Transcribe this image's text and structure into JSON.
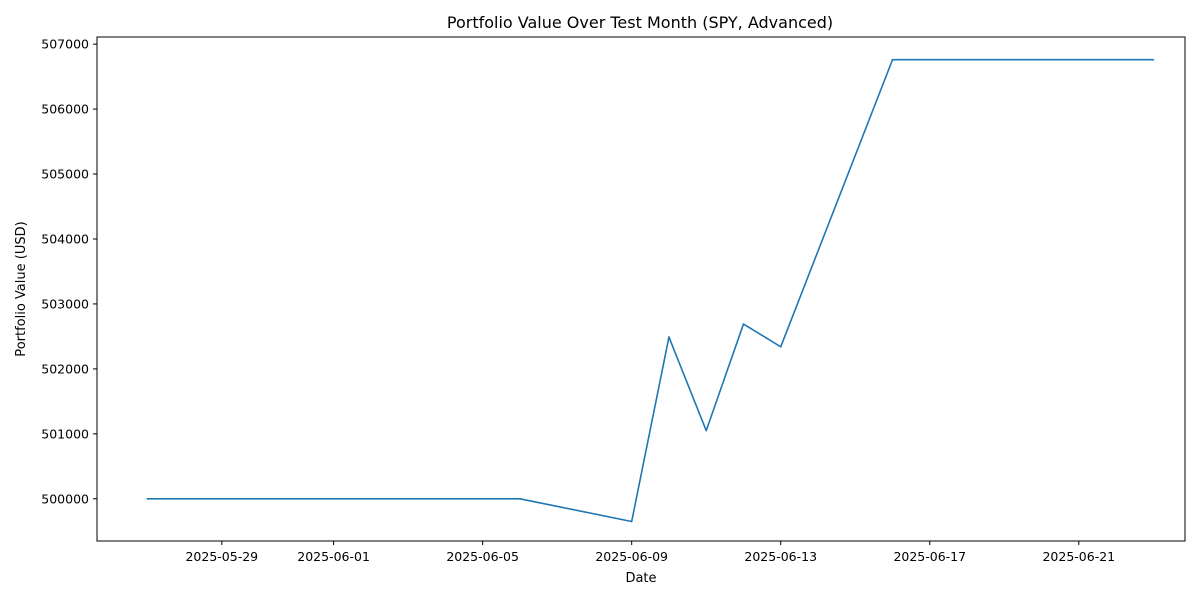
{
  "chart_data": {
    "type": "line",
    "title": "Portfolio Value Over Test Month (SPY, Advanced)",
    "xlabel": "Date",
    "ylabel": "Portfolio Value (USD)",
    "grid": false,
    "legend": "none",
    "line_color": "#1f77b4",
    "x_tick_labels": [
      "2025-05-29",
      "2025-06-01",
      "2025-06-05",
      "2025-06-09",
      "2025-06-13",
      "2025-06-17",
      "2025-06-21"
    ],
    "y_tick_labels": [
      "500000",
      "501000",
      "502000",
      "503000",
      "504000",
      "505000",
      "506000",
      "507000"
    ],
    "xlim": [
      "2025-05-25T15:36",
      "2025-06-23T20:24"
    ],
    "ylim": [
      499350,
      507110
    ],
    "series": [
      {
        "points": [
          {
            "x": "2025-05-27",
            "y": 500000
          },
          {
            "x": "2025-06-06",
            "y": 500000
          },
          {
            "x": "2025-06-09",
            "y": 499650
          },
          {
            "x": "2025-06-10",
            "y": 502490
          },
          {
            "x": "2025-06-11",
            "y": 501050
          },
          {
            "x": "2025-06-12",
            "y": 502690
          },
          {
            "x": "2025-06-13",
            "y": 502340
          },
          {
            "x": "2025-06-16",
            "y": 506760
          },
          {
            "x": "2025-06-23",
            "y": 506760
          }
        ]
      }
    ]
  }
}
